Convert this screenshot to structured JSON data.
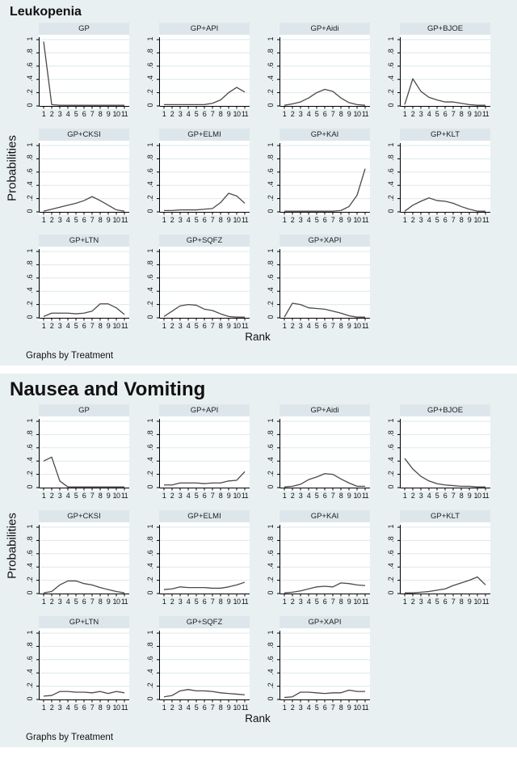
{
  "colors": {
    "section_bg": "#e9f0f1",
    "band_bg": "#dde7eb",
    "plot_bg": "#ffffff",
    "gridline": "#dce8ec",
    "axis": "#000000",
    "line": "#4a4a4a"
  },
  "chart_data": [
    {
      "type": "line",
      "title": "Leukopenia",
      "xlabel": "Rank",
      "ylabel": "Probabilities",
      "note": "Graphs by Treatment",
      "x": [
        1,
        2,
        3,
        4,
        5,
        6,
        7,
        8,
        9,
        10,
        11
      ],
      "xtick_labels": [
        "1",
        "2",
        "3",
        "4",
        "5",
        "6",
        "7",
        "8",
        "9",
        "10",
        "11"
      ],
      "ylim": [
        0,
        1
      ],
      "yticks": [
        0,
        0.2,
        0.4,
        0.6,
        0.8,
        1
      ],
      "ytick_labels": [
        "0",
        ".2",
        ".4",
        ".6",
        ".8",
        "1"
      ],
      "grid": true,
      "legend": "none",
      "series": [
        {
          "name": "GP",
          "values": [
            0.97,
            0.02,
            0.01,
            0.01,
            0.01,
            0.01,
            0.01,
            0.01,
            0.01,
            0.01,
            0.01
          ]
        },
        {
          "name": "GP+API",
          "values": [
            0.02,
            0.02,
            0.02,
            0.02,
            0.02,
            0.02,
            0.04,
            0.09,
            0.2,
            0.28,
            0.21
          ]
        },
        {
          "name": "GP+Aidi",
          "values": [
            0.01,
            0.03,
            0.06,
            0.12,
            0.2,
            0.25,
            0.22,
            0.12,
            0.05,
            0.02,
            0.01
          ]
        },
        {
          "name": "GP+BJOE",
          "values": [
            0.02,
            0.41,
            0.22,
            0.13,
            0.09,
            0.06,
            0.06,
            0.04,
            0.02,
            0.01,
            0.01
          ]
        },
        {
          "name": "GP+CKSI",
          "values": [
            0.01,
            0.04,
            0.07,
            0.1,
            0.13,
            0.17,
            0.23,
            0.17,
            0.1,
            0.03,
            0.01
          ]
        },
        {
          "name": "GP+ELMI",
          "values": [
            0.02,
            0.02,
            0.03,
            0.03,
            0.03,
            0.04,
            0.05,
            0.14,
            0.28,
            0.24,
            0.13
          ]
        },
        {
          "name": "GP+KAI",
          "values": [
            0.01,
            0.01,
            0.01,
            0.01,
            0.01,
            0.01,
            0.01,
            0.02,
            0.08,
            0.25,
            0.65
          ]
        },
        {
          "name": "GP+KLT",
          "values": [
            0.01,
            0.1,
            0.16,
            0.21,
            0.17,
            0.16,
            0.13,
            0.08,
            0.04,
            0.01,
            0.01
          ]
        },
        {
          "name": "GP+LTN",
          "values": [
            0.02,
            0.07,
            0.07,
            0.07,
            0.06,
            0.07,
            0.1,
            0.21,
            0.21,
            0.15,
            0.05
          ]
        },
        {
          "name": "GP+SQFZ",
          "values": [
            0.02,
            0.1,
            0.18,
            0.2,
            0.19,
            0.13,
            0.11,
            0.06,
            0.02,
            0.01,
            0.01
          ]
        },
        {
          "name": "GP+XAPI",
          "values": [
            0.01,
            0.22,
            0.2,
            0.15,
            0.14,
            0.13,
            0.1,
            0.07,
            0.03,
            0.01,
            0.01
          ]
        }
      ]
    },
    {
      "type": "line",
      "title": "Nausea and Vomiting",
      "xlabel": "Rank",
      "ylabel": "Probabilities",
      "note": "Graphs by Treatment",
      "x": [
        1,
        2,
        3,
        4,
        5,
        6,
        7,
        8,
        9,
        10,
        11
      ],
      "xtick_labels": [
        "1",
        "2",
        "3",
        "4",
        "5",
        "6",
        "7",
        "8",
        "9",
        "10",
        "11"
      ],
      "ylim": [
        0,
        1
      ],
      "yticks": [
        0,
        0.2,
        0.4,
        0.6,
        0.8,
        1
      ],
      "ytick_labels": [
        "0",
        ".2",
        ".4",
        ".6",
        ".8",
        "1"
      ],
      "grid": true,
      "legend": "none",
      "series": [
        {
          "name": "GP",
          "values": [
            0.4,
            0.46,
            0.1,
            0.01,
            0.01,
            0.01,
            0.01,
            0.01,
            0.01,
            0.01,
            0.01
          ]
        },
        {
          "name": "GP+API",
          "values": [
            0.04,
            0.04,
            0.07,
            0.07,
            0.07,
            0.06,
            0.07,
            0.07,
            0.1,
            0.11,
            0.24
          ]
        },
        {
          "name": "GP+Aidi",
          "values": [
            0.01,
            0.02,
            0.05,
            0.12,
            0.16,
            0.21,
            0.2,
            0.13,
            0.07,
            0.02,
            0.02
          ]
        },
        {
          "name": "GP+BJOE",
          "values": [
            0.44,
            0.28,
            0.17,
            0.1,
            0.06,
            0.04,
            0.03,
            0.02,
            0.02,
            0.01,
            0.01
          ]
        },
        {
          "name": "GP+CKSI",
          "values": [
            0.01,
            0.03,
            0.13,
            0.19,
            0.19,
            0.15,
            0.13,
            0.09,
            0.06,
            0.03,
            0.01
          ]
        },
        {
          "name": "GP+ELMI",
          "values": [
            0.06,
            0.07,
            0.1,
            0.09,
            0.09,
            0.09,
            0.08,
            0.08,
            0.1,
            0.13,
            0.17
          ]
        },
        {
          "name": "GP+KAI",
          "values": [
            0.01,
            0.02,
            0.04,
            0.07,
            0.1,
            0.11,
            0.1,
            0.16,
            0.15,
            0.13,
            0.12
          ]
        },
        {
          "name": "GP+KLT",
          "values": [
            0.01,
            0.01,
            0.02,
            0.03,
            0.05,
            0.07,
            0.12,
            0.16,
            0.2,
            0.25,
            0.13
          ]
        },
        {
          "name": "GP+LTN",
          "values": [
            0.05,
            0.06,
            0.12,
            0.12,
            0.11,
            0.11,
            0.1,
            0.12,
            0.09,
            0.12,
            0.1
          ]
        },
        {
          "name": "GP+SQFZ",
          "values": [
            0.04,
            0.06,
            0.13,
            0.15,
            0.13,
            0.13,
            0.12,
            0.1,
            0.09,
            0.08,
            0.07
          ]
        },
        {
          "name": "GP+XAPI",
          "values": [
            0.03,
            0.04,
            0.11,
            0.11,
            0.1,
            0.09,
            0.1,
            0.1,
            0.14,
            0.12,
            0.12
          ]
        }
      ]
    }
  ]
}
